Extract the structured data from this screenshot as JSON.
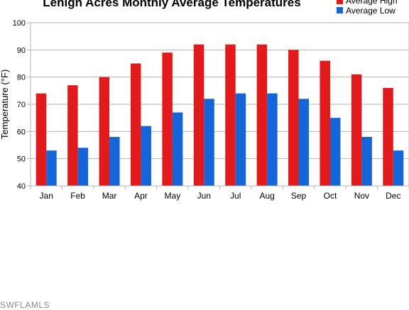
{
  "chart_data": {
    "type": "bar",
    "title": "Lehigh Acres Monthly Average Temperatures",
    "xlabel": "",
    "ylabel": "Temperature (°F)",
    "ylim": [
      40,
      100
    ],
    "yticks": [
      40,
      50,
      60,
      70,
      80,
      90,
      100
    ],
    "grid": true,
    "legend_position": "top-right",
    "categories": [
      "Jan",
      "Feb",
      "Mar",
      "Apr",
      "May",
      "Jun",
      "Jul",
      "Aug",
      "Sep",
      "Oct",
      "Nov",
      "Dec"
    ],
    "series": [
      {
        "name": "Average High",
        "color": "#e31a1c",
        "values": [
          74,
          77,
          80,
          85,
          89,
          92,
          92,
          92,
          90,
          86,
          81,
          76
        ]
      },
      {
        "name": "Average Low",
        "color": "#1565d8",
        "values": [
          53,
          54,
          58,
          62,
          67,
          72,
          74,
          74,
          72,
          65,
          58,
          53
        ]
      }
    ]
  },
  "watermark": "SWFLAMLS"
}
